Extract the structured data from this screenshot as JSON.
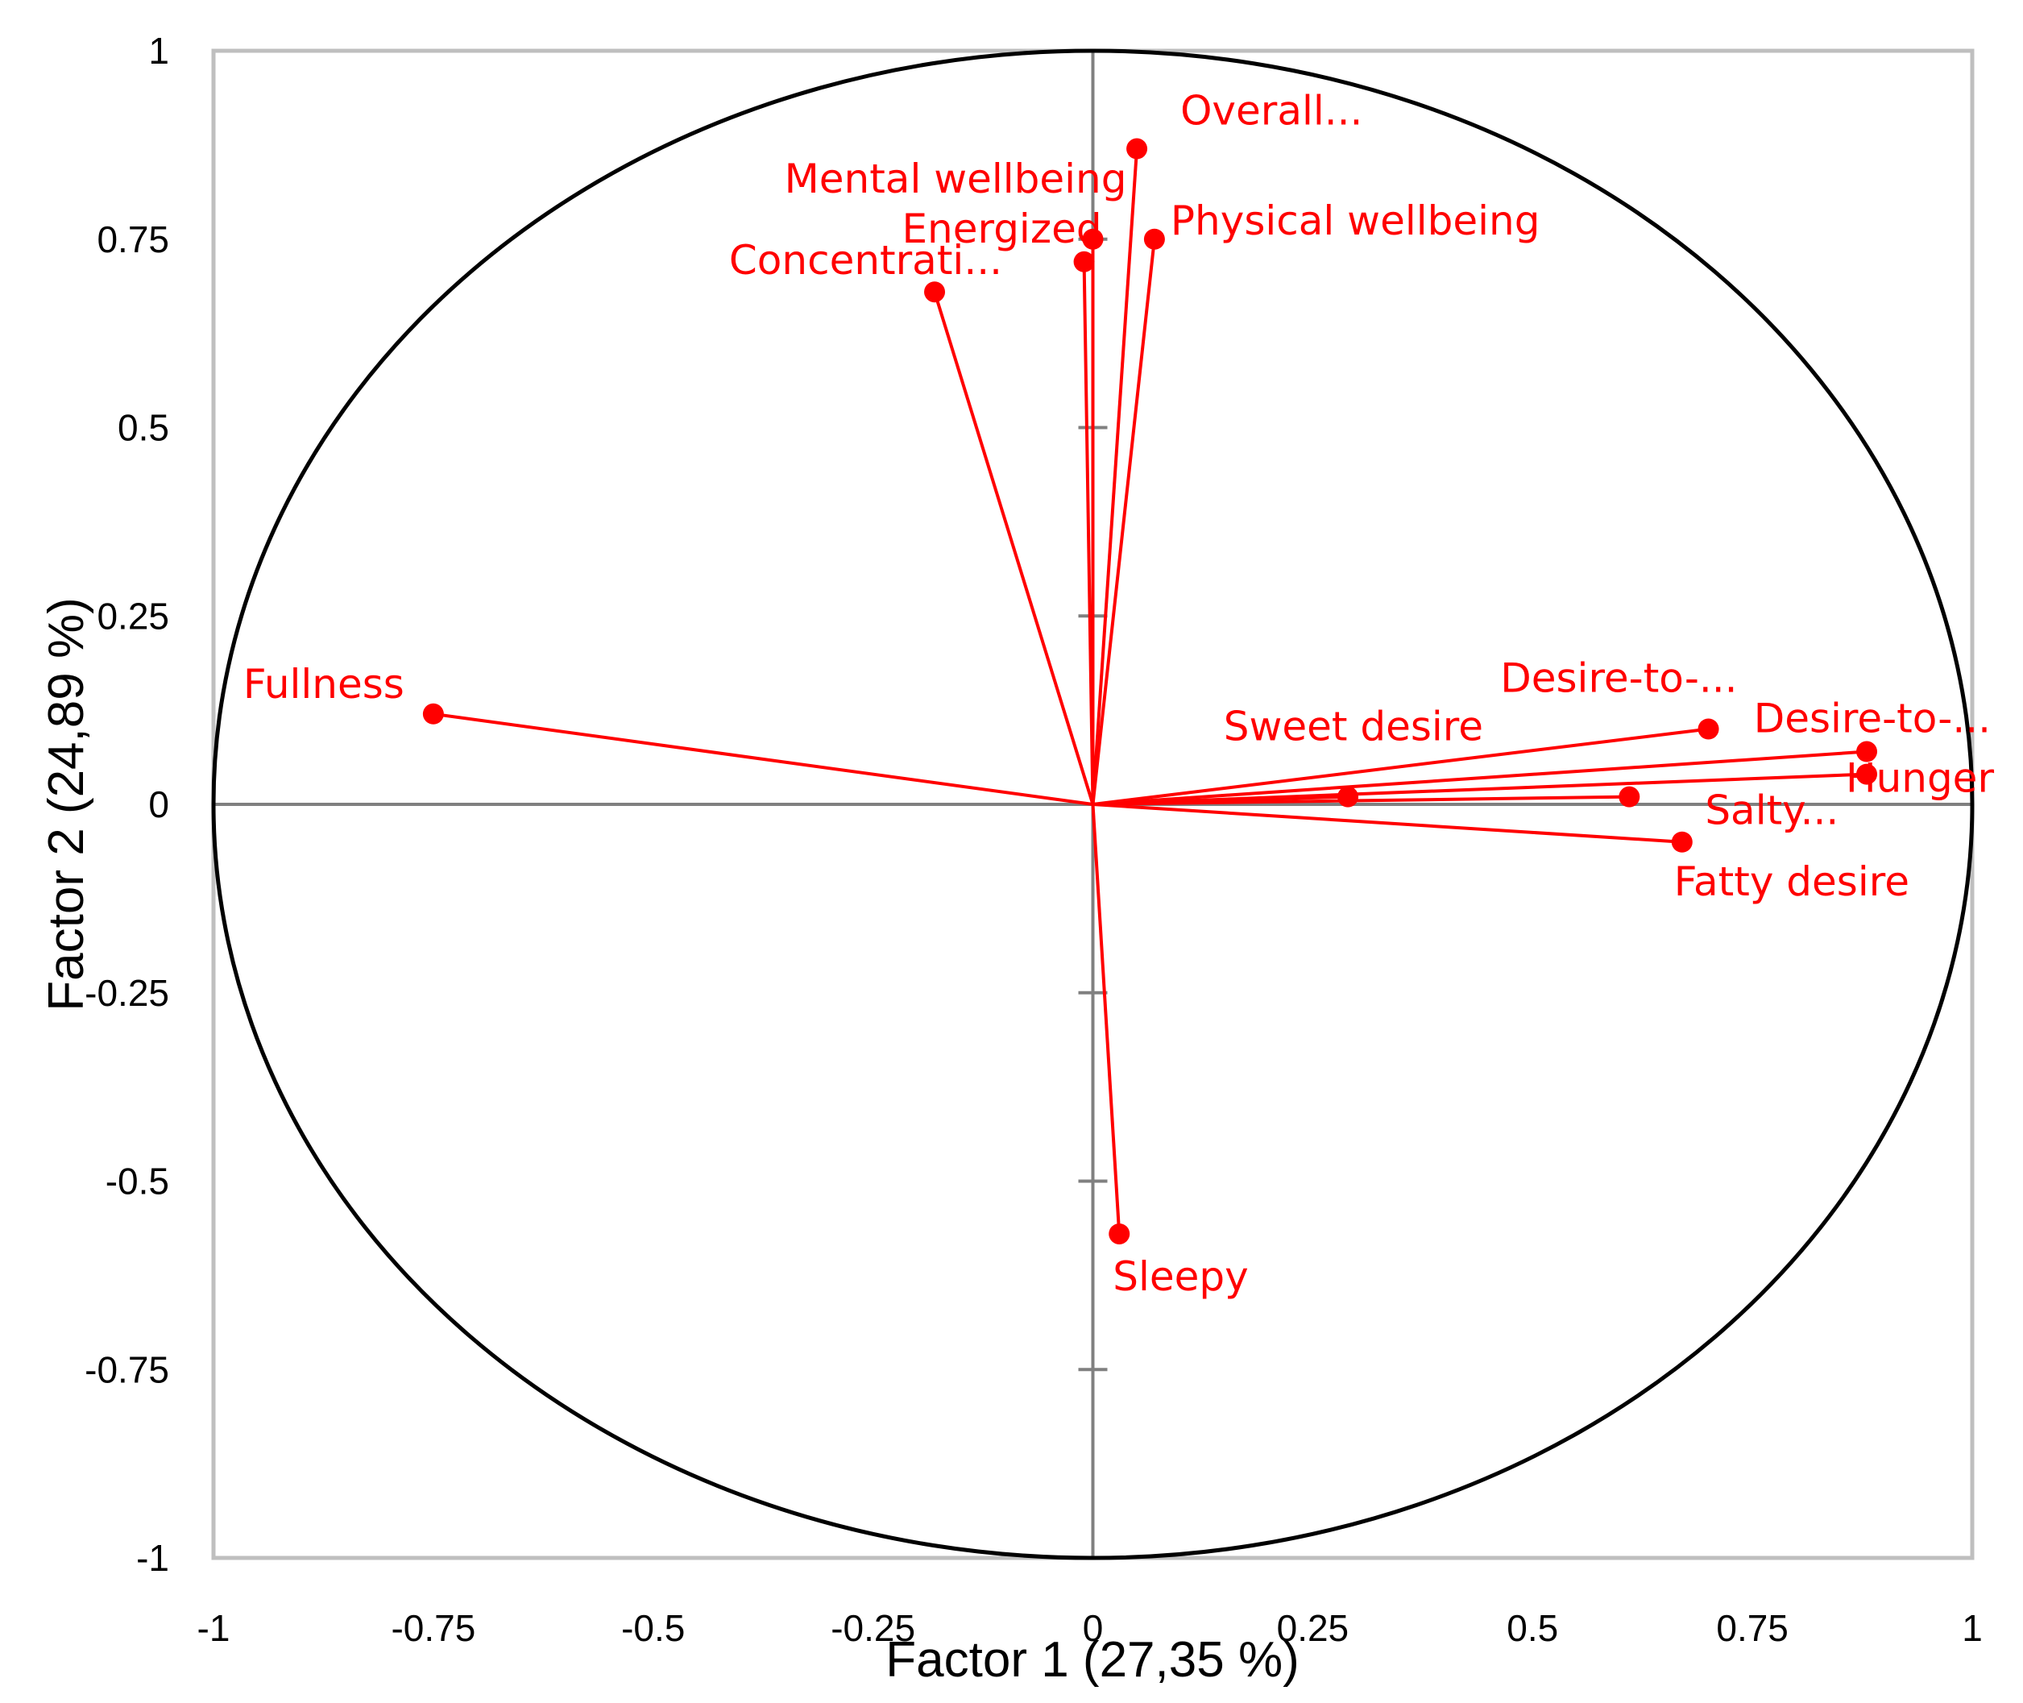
{
  "chart_data": {
    "type": "scatter",
    "subtype": "pca-correlation-circle",
    "title": "",
    "xlabel": "Factor 1 (27,35 %)",
    "ylabel": "Factor 2 (24,89 %)",
    "xlim": [
      -1,
      1
    ],
    "ylim": [
      -1,
      1
    ],
    "x_ticks": [
      "-1",
      "-0.75",
      "-0.5",
      "-0.25",
      "0",
      "0.25",
      "0.5",
      "0.75",
      "1"
    ],
    "y_ticks": [
      "1",
      "0.75",
      "0.5",
      "0.25",
      "0",
      "-0.25",
      "-0.5",
      "-0.75",
      "-1"
    ],
    "grid": false,
    "unit_circle": true,
    "colors": {
      "series": "#ff0000",
      "axes": "#808080",
      "frame": "#bfbfbf",
      "circle": "#000000"
    },
    "points": [
      {
        "name": "Overall...",
        "x": 0.05,
        "y": 0.87
      },
      {
        "name": "Mental wellbeing",
        "x": 0.0,
        "y": 0.75
      },
      {
        "name": "Energized",
        "x": -0.01,
        "y": 0.72
      },
      {
        "name": "Physical wellbeing",
        "x": 0.07,
        "y": 0.75
      },
      {
        "name": "Concentrati...",
        "x": -0.18,
        "y": 0.68
      },
      {
        "name": "Fullness",
        "x": -0.75,
        "y": 0.12
      },
      {
        "name": "Desire-to-...",
        "x": 0.7,
        "y": 0.1
      },
      {
        "name": "Desire-to-...",
        "x": 0.88,
        "y": 0.07
      },
      {
        "name": "Sweet desire",
        "x": 0.29,
        "y": 0.01
      },
      {
        "name": "Hunger",
        "x": 0.88,
        "y": 0.04
      },
      {
        "name": "Salty...",
        "x": 0.61,
        "y": 0.01
      },
      {
        "name": "Fatty desire",
        "x": 0.67,
        "y": -0.05
      },
      {
        "name": "Sleepy",
        "x": 0.03,
        "y": -0.57
      }
    ]
  }
}
